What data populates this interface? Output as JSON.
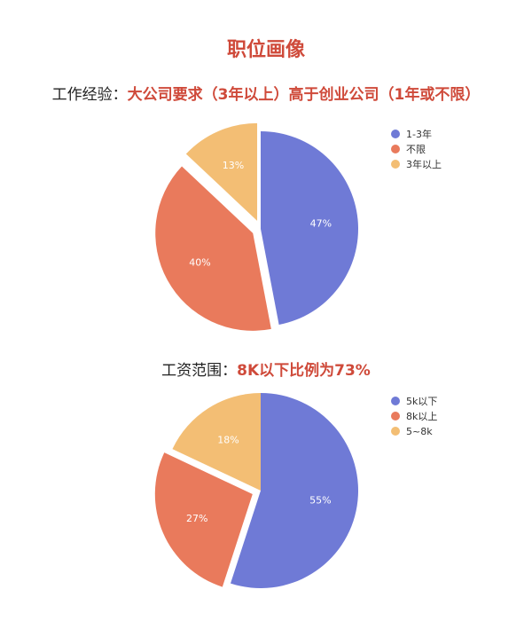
{
  "title": "职位画像",
  "colors": {
    "accent": "#cf4a3a",
    "purple": "#6f7ad6",
    "orange": "#e97a5c",
    "yellow": "#f3be74"
  },
  "section1": {
    "prefix": "工作经验：",
    "highlight": "大公司要求（3年以上）高于创业公司（1年或不限）"
  },
  "section2": {
    "prefix": "工资范围：",
    "highlight": "8K以下比例为73%"
  },
  "chart_data": [
    {
      "type": "pie",
      "title": "",
      "categories": [
        "1-3年",
        "不限",
        "3年以上"
      ],
      "values": [
        47,
        40,
        13
      ],
      "labels": [
        "47%",
        "40%",
        "13%"
      ],
      "colors": [
        "#6f7ad6",
        "#e97a5c",
        "#f3be74"
      ],
      "exploded": [
        "不限",
        "3年以上"
      ],
      "legend": "right"
    },
    {
      "type": "pie",
      "title": "",
      "categories": [
        "5k以下",
        "8k以上",
        "5~8k"
      ],
      "values": [
        55,
        27,
        18
      ],
      "labels": [
        "55%",
        "27%",
        "18%"
      ],
      "colors": [
        "#6f7ad6",
        "#e97a5c",
        "#f3be74"
      ],
      "exploded": [
        "8k以上"
      ],
      "legend": "right"
    }
  ]
}
